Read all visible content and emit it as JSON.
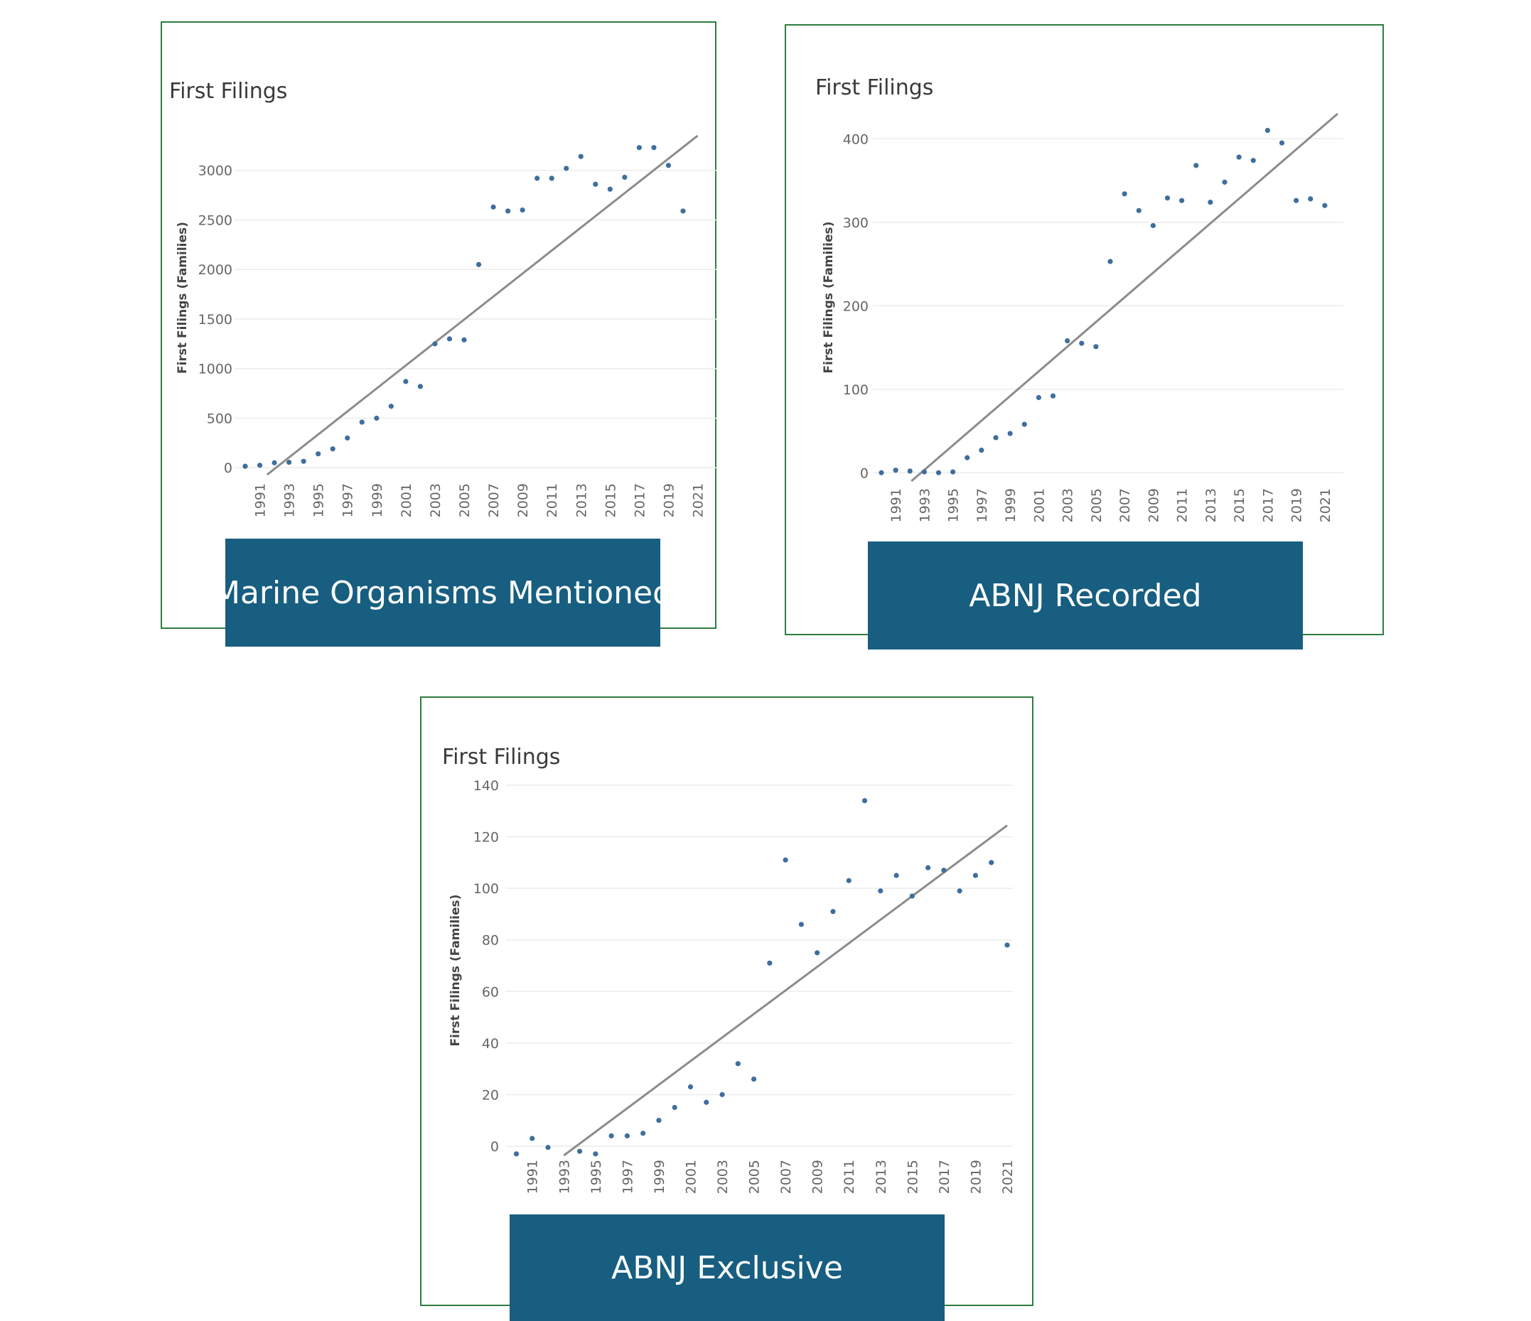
{
  "chart_data": [
    {
      "type": "scatter",
      "title": "First Filings",
      "ylabel": "First Filings (Families)",
      "caption": "Marine Organisms Mentioned",
      "ylim": [
        -70,
        3500
      ],
      "yticks": [
        0,
        500,
        1000,
        1500,
        2000,
        2500,
        3000
      ],
      "xticks": [
        "1991",
        "1993",
        "1995",
        "1997",
        "1999",
        "2001",
        "2003",
        "2005",
        "2007",
        "2009",
        "2011",
        "2013",
        "2015",
        "2017",
        "2019",
        "2021"
      ],
      "x": [
        1990,
        1991,
        1992,
        1993,
        1994,
        1995,
        1996,
        1997,
        1998,
        1999,
        2000,
        2001,
        2002,
        2003,
        2004,
        2005,
        2006,
        2007,
        2008,
        2009,
        2010,
        2011,
        2012,
        2013,
        2014,
        2015,
        2016,
        2017,
        2018,
        2019,
        2020
      ],
      "y": [
        15,
        25,
        50,
        55,
        65,
        140,
        190,
        300,
        460,
        500,
        620,
        870,
        820,
        1250,
        1300,
        1290,
        2050,
        2630,
        2590,
        2600,
        2920,
        2920,
        3020,
        3140,
        2860,
        2810,
        2930,
        3230,
        3230,
        3050,
        2590
      ],
      "trend": {
        "x": [
          1991.5,
          2021
        ],
        "y": [
          -70,
          3350
        ]
      },
      "grid": true,
      "legend": "none"
    },
    {
      "type": "scatter",
      "title": "First Filings",
      "ylabel": "First Filings (Families)",
      "caption": "ABNJ Recorded",
      "ylim": [
        -10,
        430
      ],
      "yticks": [
        0,
        100,
        200,
        300,
        400
      ],
      "xticks": [
        "1991",
        "1993",
        "1995",
        "1997",
        "1999",
        "2001",
        "2003",
        "2005",
        "2007",
        "2009",
        "2011",
        "2013",
        "2015",
        "2017",
        "2019",
        "2021"
      ],
      "x": [
        1990,
        1991,
        1992,
        1993,
        1994,
        1995,
        1996,
        1997,
        1998,
        1999,
        2000,
        2001,
        2002,
        2003,
        2004,
        2005,
        2006,
        2007,
        2008,
        2009,
        2010,
        2011,
        2012,
        2013,
        2014,
        2015,
        2016,
        2017,
        2018,
        2019,
        2020,
        2021
      ],
      "y": [
        0,
        3,
        2,
        1,
        0,
        1,
        18,
        27,
        42,
        47,
        58,
        90,
        92,
        158,
        155,
        151,
        253,
        334,
        314,
        296,
        329,
        326,
        368,
        324,
        348,
        378,
        374,
        410,
        395,
        326,
        328,
        320
      ],
      "trend": {
        "x": [
          1992.1,
          2021.9
        ],
        "y": [
          -10,
          430
        ]
      },
      "grid": true,
      "legend": "none"
    },
    {
      "type": "scatter",
      "title": "First Filings",
      "ylabel": "First Filings (Families)",
      "caption": "ABNJ Exclusive",
      "ylim": [
        -3.6,
        140
      ],
      "yticks": [
        0,
        20,
        40,
        60,
        80,
        100,
        120,
        140
      ],
      "xticks": [
        "1991",
        "1993",
        "1995",
        "1997",
        "1999",
        "2001",
        "2003",
        "2005",
        "2007",
        "2009",
        "2011",
        "2013",
        "2015",
        "2017",
        "2019",
        "2021"
      ],
      "x": [
        1990,
        1991,
        1992,
        1994,
        1995,
        1996,
        1997,
        1998,
        1999,
        2000,
        2001,
        2002,
        2003,
        2004,
        2005,
        2006,
        2007,
        2008,
        2009,
        2010,
        2011,
        2012,
        2013,
        2014,
        2015,
        2016,
        2017,
        2018,
        2019,
        2020,
        2021
      ],
      "y": [
        -3,
        3,
        -0.5,
        -2,
        -3,
        4,
        4,
        5,
        10,
        15,
        23,
        17,
        20,
        32,
        26,
        71,
        111,
        86,
        75,
        91,
        103,
        134,
        99,
        105,
        97,
        108,
        107,
        99,
        105,
        110,
        78
      ],
      "trend": {
        "x": [
          1993,
          2021
        ],
        "y": [
          -3.6,
          124.4
        ]
      },
      "grid": true,
      "legend": "none"
    }
  ]
}
